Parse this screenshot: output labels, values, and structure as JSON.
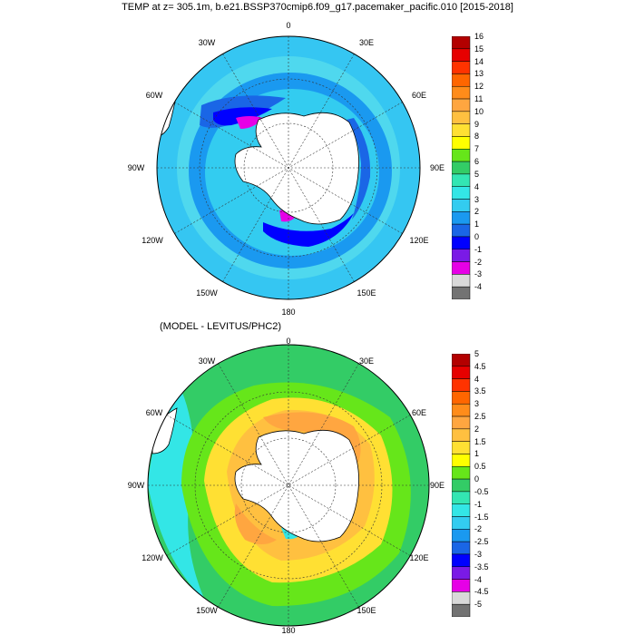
{
  "title": "TEMP at z= 305.1m, b.e21.BSSP370cmip6.f09_g17.pacemaker_pacific.010 [2015-2018]",
  "subtitle": "(MODEL - LEVITUS/PHC2)",
  "map_labels": [
    "0",
    "30E",
    "60E",
    "90E",
    "120E",
    "150E",
    "180",
    "150W",
    "120W",
    "90W",
    "60W",
    "30W"
  ],
  "colorbar_top": {
    "labels": [
      "16",
      "15",
      "14",
      "13",
      "12",
      "11",
      "10",
      "9",
      "8",
      "7",
      "6",
      "5",
      "4",
      "3",
      "2",
      "1",
      "0",
      "-1",
      "-2",
      "-3",
      "-4"
    ],
    "colors": [
      "#b30000",
      "#e60000",
      "#ff3300",
      "#ff6600",
      "#ff8c1a",
      "#ffa640",
      "#ffc040",
      "#ffe033",
      "#ffff00",
      "#66e61a",
      "#33cc66",
      "#33e6b3",
      "#33e6e6",
      "#33ccf0",
      "#1a99f0",
      "#1a66e6",
      "#0000ff",
      "#7a1ae6",
      "#e600e6",
      "#d9d9d9",
      "#737373"
    ]
  },
  "colorbar_bottom": {
    "labels": [
      "5",
      "4.5",
      "4",
      "3.5",
      "3",
      "2.5",
      "2",
      "1.5",
      "1",
      "0.5",
      "0",
      "-0.5",
      "-1",
      "-1.5",
      "-2",
      "-2.5",
      "-3",
      "-3.5",
      "-4",
      "-4.5",
      "-5"
    ],
    "colors": [
      "#b30000",
      "#e60000",
      "#ff3300",
      "#ff6600",
      "#ff8c1a",
      "#ffa640",
      "#ffc040",
      "#ffe033",
      "#ffff00",
      "#66e61a",
      "#33cc66",
      "#33e6b3",
      "#33e6e6",
      "#33ccf0",
      "#1a99f0",
      "#1a66e6",
      "#0000ff",
      "#7a1ae6",
      "#e600e6",
      "#d9d9d9",
      "#737373"
    ]
  }
}
